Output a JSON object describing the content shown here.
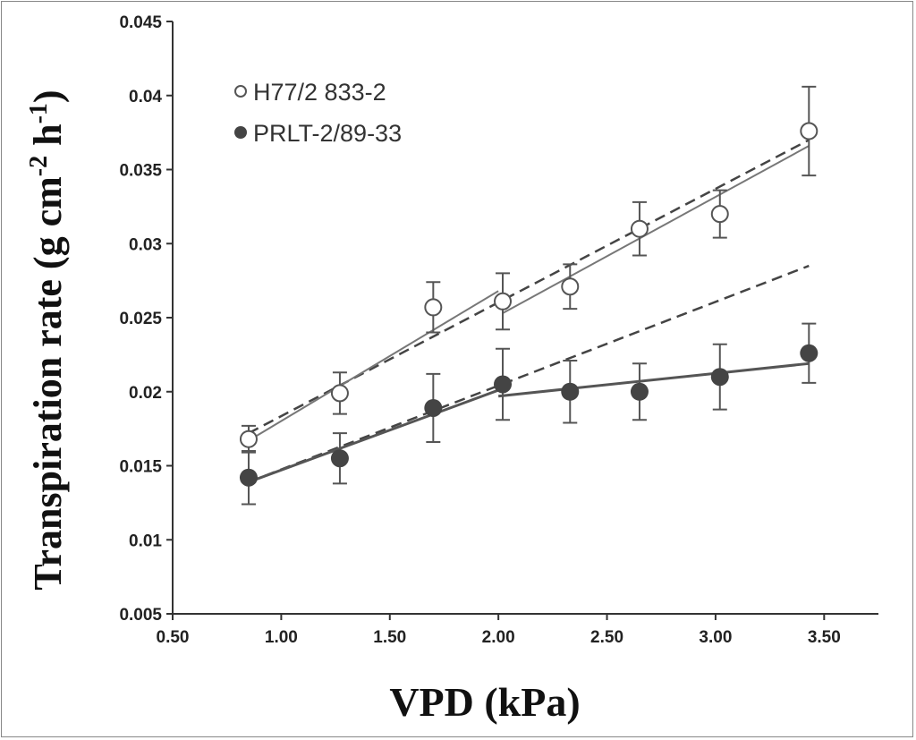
{
  "chart_data": {
    "type": "scatter",
    "title": "",
    "xlabel": "VPD (kPa)",
    "ylabel_main": "Transpiration rate (g cm",
    "ylabel_sup1": "-2",
    "ylabel_mid": " h",
    "ylabel_sup2": "-1",
    "ylabel_end": ")",
    "xlim": [
      0.5,
      3.75
    ],
    "ylim": [
      0.005,
      0.045
    ],
    "xticks": [
      "0.50",
      "1.00",
      "1.50",
      "2.00",
      "2.50",
      "3.00",
      "3.50"
    ],
    "yticks": [
      "0.005",
      "0.01",
      "0.015",
      "0.02",
      "0.025",
      "0.03",
      "0.035",
      "0.04",
      "0.045"
    ],
    "grid": false,
    "legend_placement": "top-left",
    "series": [
      {
        "name": "H77/2 833-2",
        "marker": "open-circle",
        "color": "#555555",
        "x": [
          0.85,
          1.27,
          1.7,
          2.02,
          2.33,
          2.65,
          3.02,
          3.43
        ],
        "y": [
          0.0168,
          0.0199,
          0.0257,
          0.0261,
          0.0271,
          0.031,
          0.032,
          0.0376
        ],
        "error": [
          0.0009,
          0.0014,
          0.0017,
          0.0019,
          0.0015,
          0.0018,
          0.0016,
          0.003
        ],
        "fit_solid": [
          [
            [
              0.85,
              0.0167
            ],
            [
              2.0,
              0.0268
            ]
          ],
          [
            [
              2.02,
              0.0253
            ],
            [
              3.43,
              0.0366
            ]
          ]
        ],
        "fit_dashed": [
          [
            [
              0.85,
              0.0172
            ],
            [
              3.43,
              0.037
            ]
          ]
        ]
      },
      {
        "name": "PRLT-2/89-33",
        "marker": "filled-circle",
        "color": "#444444",
        "x": [
          0.85,
          1.27,
          1.7,
          2.02,
          2.33,
          2.65,
          3.02,
          3.43
        ],
        "y": [
          0.0142,
          0.0155,
          0.0189,
          0.0205,
          0.02,
          0.02,
          0.021,
          0.0226
        ],
        "error": [
          0.0018,
          0.0017,
          0.0023,
          0.0024,
          0.0021,
          0.0019,
          0.0022,
          0.002
        ],
        "fit_solid": [
          [
            [
              0.85,
              0.0139
            ],
            [
              2.0,
              0.0201
            ]
          ],
          [
            [
              2.0,
              0.0197
            ],
            [
              3.43,
              0.0219
            ]
          ]
        ],
        "fit_dashed": [
          [
            [
              0.85,
              0.0139
            ],
            [
              3.43,
              0.0285
            ]
          ]
        ]
      }
    ]
  }
}
